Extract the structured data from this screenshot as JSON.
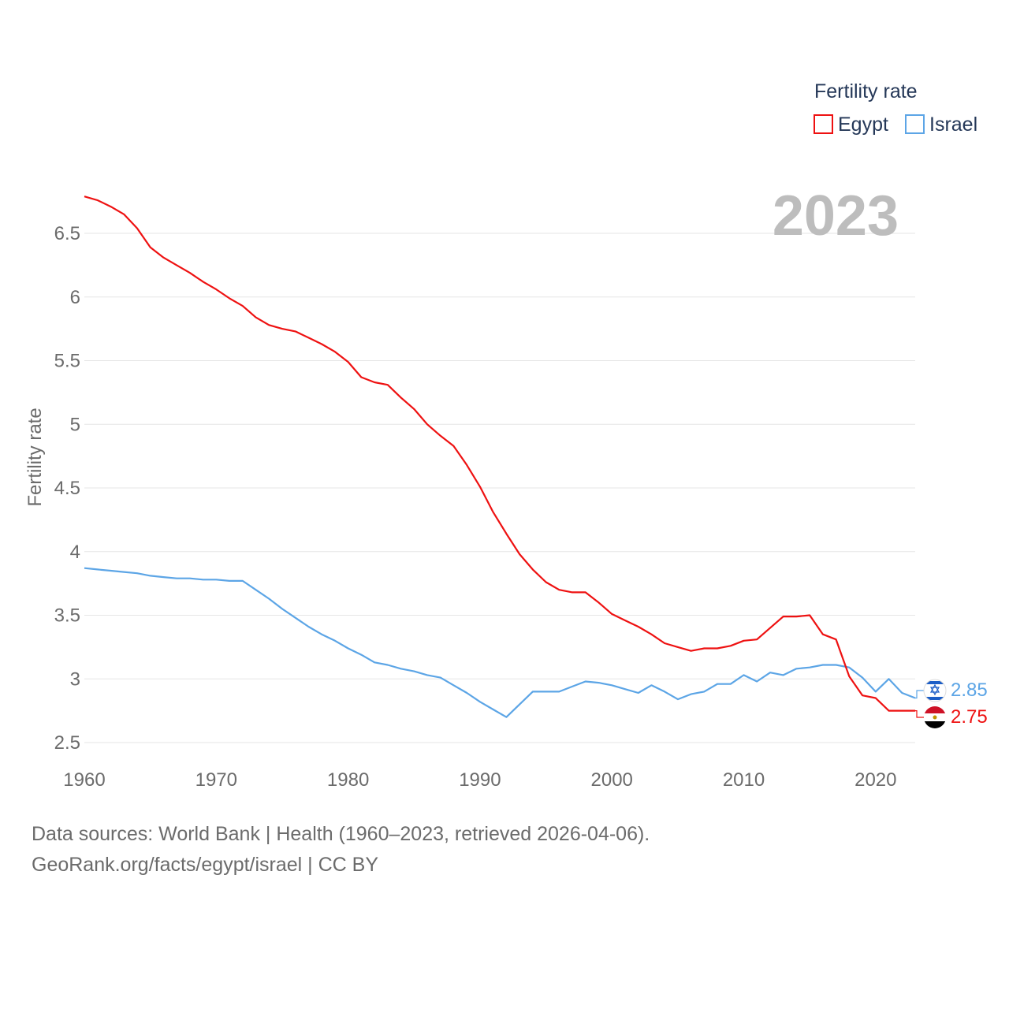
{
  "chart_data": {
    "type": "line",
    "title": "",
    "year_label": "2023",
    "ylabel": "Fertility rate",
    "xlabel": "",
    "xlim": [
      1960,
      2023
    ],
    "ylim": [
      2.5,
      6.8
    ],
    "x_ticks": [
      1960,
      1970,
      1980,
      1990,
      2000,
      2010,
      2020
    ],
    "y_ticks": [
      {
        "value": 2.5,
        "label": "2.5"
      },
      {
        "value": 3,
        "label": "3"
      },
      {
        "value": 3.5,
        "label": "3.5"
      },
      {
        "value": 4,
        "label": "4"
      },
      {
        "value": 4.5,
        "label": "4.5"
      },
      {
        "value": 5,
        "label": "5"
      },
      {
        "value": 5.5,
        "label": "5.5"
      },
      {
        "value": 6,
        "label": "6"
      },
      {
        "value": 6.5,
        "label": "6.5"
      }
    ],
    "legend": {
      "title": "Fertility rate",
      "position": "top-right",
      "items": [
        {
          "name": "Egypt",
          "color": "#ee1111"
        },
        {
          "name": "Israel",
          "color": "#5ca5e6"
        }
      ]
    },
    "x": [
      1960,
      1961,
      1962,
      1963,
      1964,
      1965,
      1966,
      1967,
      1968,
      1969,
      1970,
      1971,
      1972,
      1973,
      1974,
      1975,
      1976,
      1977,
      1978,
      1979,
      1980,
      1981,
      1982,
      1983,
      1984,
      1985,
      1986,
      1987,
      1988,
      1989,
      1990,
      1991,
      1992,
      1993,
      1994,
      1995,
      1996,
      1997,
      1998,
      1999,
      2000,
      2001,
      2002,
      2003,
      2004,
      2005,
      2006,
      2007,
      2008,
      2009,
      2010,
      2011,
      2012,
      2013,
      2014,
      2015,
      2016,
      2017,
      2018,
      2019,
      2020,
      2021,
      2022,
      2023
    ],
    "series": [
      {
        "name": "Egypt",
        "color": "#ee1111",
        "end_label": "2.75",
        "values": [
          6.79,
          6.76,
          6.71,
          6.65,
          6.54,
          6.39,
          6.31,
          6.25,
          6.19,
          6.12,
          6.06,
          5.99,
          5.93,
          5.84,
          5.78,
          5.75,
          5.73,
          5.68,
          5.63,
          5.57,
          5.49,
          5.37,
          5.33,
          5.31,
          5.21,
          5.12,
          5.0,
          4.91,
          4.83,
          4.68,
          4.51,
          4.31,
          4.14,
          3.98,
          3.86,
          3.76,
          3.7,
          3.68,
          3.68,
          3.6,
          3.51,
          3.46,
          3.41,
          3.35,
          3.28,
          3.25,
          3.22,
          3.24,
          3.24,
          3.26,
          3.3,
          3.31,
          3.4,
          3.49,
          3.49,
          3.5,
          3.35,
          3.31,
          3.02,
          2.87,
          2.85,
          2.75,
          2.75,
          2.75
        ]
      },
      {
        "name": "Israel",
        "color": "#5ca5e6",
        "end_label": "2.85",
        "values": [
          3.87,
          3.86,
          3.85,
          3.84,
          3.83,
          3.81,
          3.8,
          3.79,
          3.79,
          3.78,
          3.78,
          3.77,
          3.77,
          3.7,
          3.63,
          3.55,
          3.48,
          3.41,
          3.35,
          3.3,
          3.24,
          3.19,
          3.13,
          3.11,
          3.08,
          3.06,
          3.03,
          3.01,
          2.95,
          2.89,
          2.82,
          2.76,
          2.7,
          2.8,
          2.9,
          2.9,
          2.9,
          2.94,
          2.98,
          2.97,
          2.95,
          2.92,
          2.89,
          2.95,
          2.9,
          2.84,
          2.88,
          2.9,
          2.96,
          2.96,
          3.03,
          2.98,
          3.05,
          3.03,
          3.08,
          3.09,
          3.11,
          3.11,
          3.09,
          3.01,
          2.9,
          3.0,
          2.89,
          2.85
        ]
      }
    ]
  },
  "footer": {
    "line1": "Data sources: World Bank | Health (1960–2023, retrieved 2026-04-06).",
    "line2": "GeoRank.org/facts/egypt/israel | CC BY"
  }
}
